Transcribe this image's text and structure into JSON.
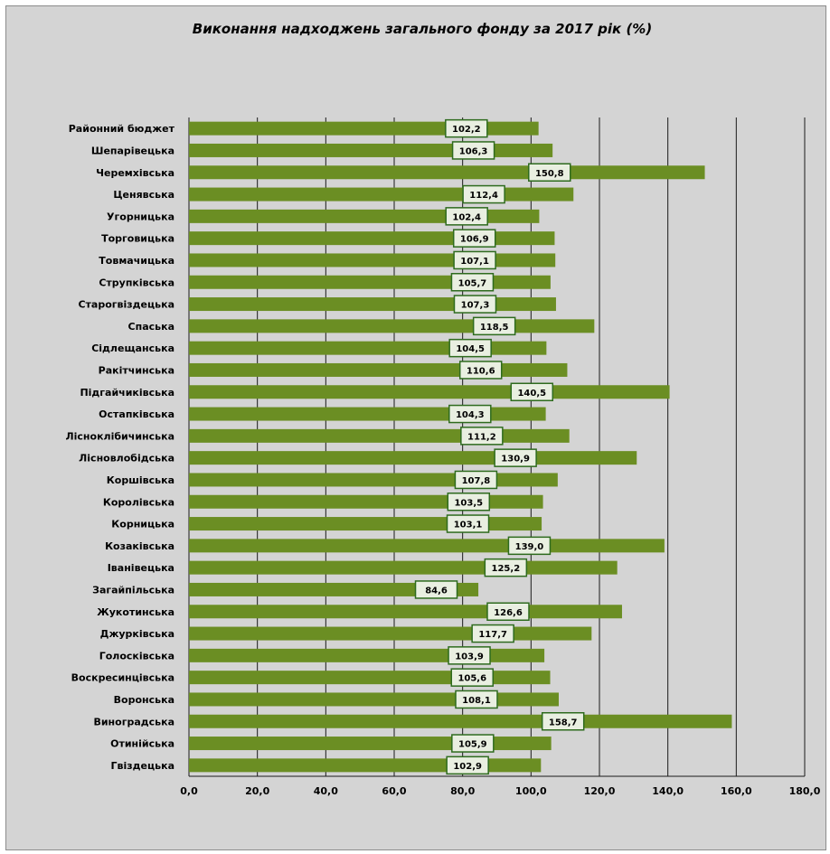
{
  "chart_data": {
    "type": "bar",
    "orientation": "horizontal",
    "title": "Виконання надходжень загального фонду за 2017 рік (%)",
    "xlabel": "",
    "ylabel": "",
    "xlim": [
      0,
      180
    ],
    "x_ticks": [
      "0,0",
      "20,0",
      "40,0",
      "60,0",
      "80,0",
      "100,0",
      "120,0",
      "140,0",
      "160,0",
      "180,0"
    ],
    "grid": "vertical",
    "legend": "none",
    "bar_color": "#6b8e23",
    "label_box_border": "#2e6b1e",
    "categories": [
      "Районний бюджет",
      "Шепарівецька",
      "Черемхівська",
      "Ценявська",
      "Угорницька",
      "Торговицька",
      "Товмачицька",
      "Струпківська",
      "Старогвіздецька",
      "Спаська",
      "Сідлещанська",
      "Ракітчинська",
      "Підгайчиківська",
      "Остапківська",
      "Лісноклібичинська",
      "Лісновлобідська",
      "Коршівська",
      "Королівська",
      "Корницька",
      "Козаківська",
      "Іванівецька",
      "Загайпільська",
      "Жукотинська",
      "Джурківська",
      "Голосківська",
      "Воскресинцівська",
      "Воронська",
      "Виноградська",
      "Отинійська",
      "Гвіздецька"
    ],
    "values": [
      102.2,
      106.3,
      150.8,
      112.4,
      102.4,
      106.9,
      107.1,
      105.7,
      107.3,
      118.5,
      104.5,
      110.6,
      140.5,
      104.3,
      111.2,
      130.9,
      107.8,
      103.5,
      103.1,
      139.0,
      125.2,
      84.6,
      126.6,
      117.7,
      103.9,
      105.6,
      108.1,
      158.7,
      105.9,
      102.9
    ],
    "value_labels": [
      "102,2",
      "106,3",
      "150,8",
      "112,4",
      "102,4",
      "106,9",
      "107,1",
      "105,7",
      "107,3",
      "118,5",
      "104,5",
      "110,6",
      "140,5",
      "104,3",
      "111,2",
      "130,9",
      "107,8",
      "103,5",
      "103,1",
      "139,0",
      "125,2",
      "84,6",
      "126,6",
      "117,7",
      "103,9",
      "105,6",
      "108,1",
      "158,7",
      "105,9",
      "102,9"
    ]
  }
}
